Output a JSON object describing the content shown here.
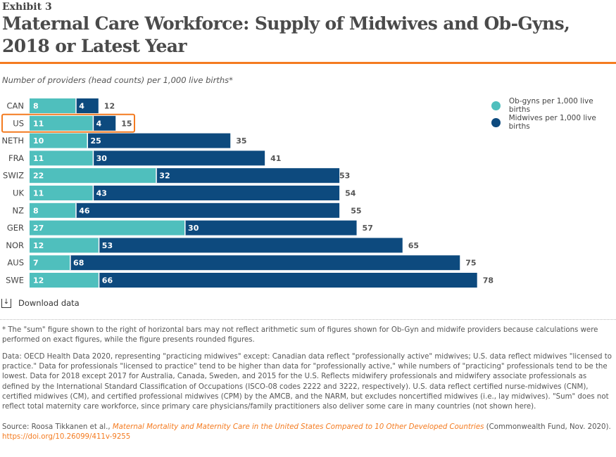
{
  "header": {
    "exhibit": "Exhibit 3",
    "title": "Maternal Care Workforce: Supply of Midwives and Ob-Gyns, 2018 or Latest Year",
    "subtitle": "Number of providers (head counts) per 1,000 live births*"
  },
  "chart_data": {
    "type": "bar",
    "orientation": "horizontal",
    "stacked": true,
    "categories": [
      "CAN",
      "US",
      "NETH",
      "FRA",
      "SWIZ",
      "UK",
      "NZ",
      "GER",
      "NOR",
      "AUS",
      "SWE"
    ],
    "highlighted_category": "US",
    "series": [
      {
        "name": "Ob-gyns per 1,000 live births",
        "color": "#4fbfbd",
        "values": [
          8,
          11,
          10,
          11,
          22,
          11,
          8,
          27,
          12,
          7,
          12
        ]
      },
      {
        "name": "Midwives per 1,000 live births",
        "color": "#0d4a7e",
        "values": [
          4,
          4,
          25,
          30,
          32,
          43,
          46,
          30,
          53,
          68,
          66
        ]
      }
    ],
    "totals": [
      12,
      15,
      35,
      41,
      53,
      54,
      55,
      57,
      65,
      75,
      78
    ],
    "legend_position": "top-right",
    "grid": false,
    "xlim": [
      0,
      80
    ]
  },
  "download": {
    "label": "Download data"
  },
  "notes": {
    "footnote": "* The \"sum\" figure shown to the right of horizontal bars may not reflect arithmetic sum of figures shown for Ob-Gyn and midwife providers because calculations were performed on exact figures, while the figure presents rounded figures.",
    "data": "Data: OECD Health Data 2020, representing \"practicing midwives\" except: Canadian data reflect \"professionally active\" midwives; U.S. data reflect midwives \"licensed to practice.\" Data for professionals \"licensed to practice\" tend to be higher than data for \"professionally active,\" while numbers of \"practicing\" professionals tend to be the lowest. Data for 2018 except 2017 for Australia, Canada, Sweden, and 2015 for the U.S. Reflects midwifery professionals and midwifery associate professionals as defined by the International Standard Classification of Occupations (ISCO-08 codes 2222 and 3222, respectively). U.S. data reflect certified nurse-midwives (CNM), certified midwives (CM), and certified professional midwives (CPM) by the AMCB, and the NARM, but excludes noncertified midwives (i.e., lay midwives). \"Sum\" does not reflect total maternity care workforce, since primary care physicians/family practitioners also deliver some care in many countries (not shown here).",
    "source_prefix": "Source: Roosa Tikkanen et al., ",
    "source_title": "Maternal Mortality and Maternity Care in the United States Compared to 10 Other Developed Countries",
    "source_suffix": " (Commonwealth Fund, Nov. 2020). ",
    "source_link": "https://doi.org/10.26099/411v-9255"
  },
  "colors": {
    "accent": "#f47b20"
  }
}
